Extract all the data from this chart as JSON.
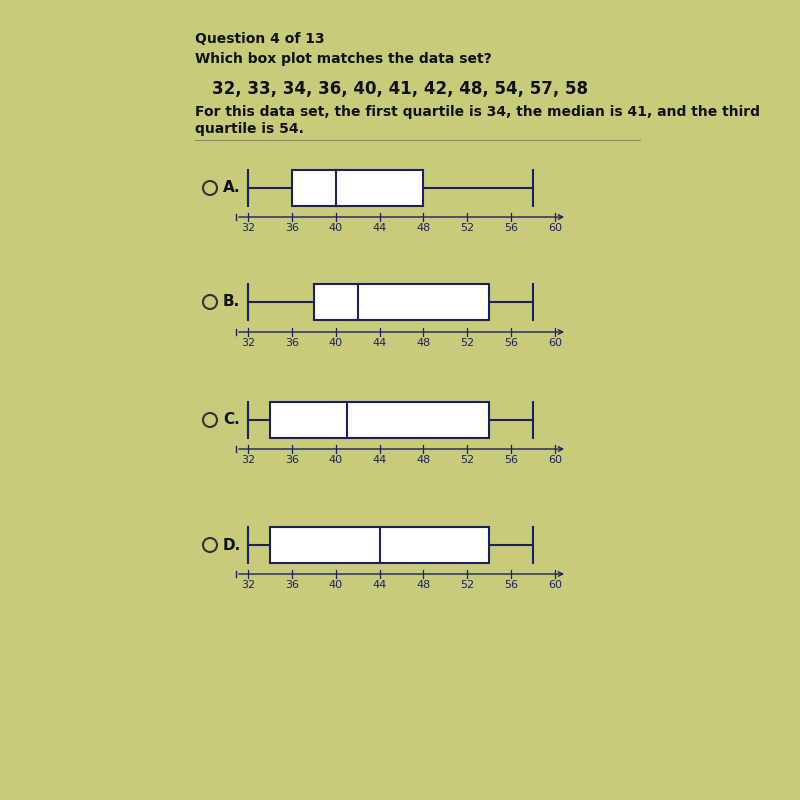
{
  "title": "Question 4 of 13",
  "question": "Which box plot matches the data set?",
  "dataset": "32, 33, 34, 36, 40, 41, 42, 48, 54, 57, 58",
  "description_line1": "For this data set, the first quartile is 34, the median is 41, and the third",
  "description_line2": "quartile is 54.",
  "background_color": "#c8cc7a",
  "box_plots": [
    {
      "label": "A.",
      "min": 32,
      "q1": 36,
      "median": 40,
      "q3": 48,
      "max": 58
    },
    {
      "label": "B.",
      "min": 32,
      "q1": 38,
      "median": 42,
      "q3": 54,
      "max": 58
    },
    {
      "label": "C.",
      "min": 32,
      "q1": 34,
      "median": 41,
      "q3": 54,
      "max": 58
    },
    {
      "label": "D.",
      "min": 32,
      "q1": 34,
      "median": 44,
      "q3": 54,
      "max": 58
    }
  ],
  "axis_data_min": 32,
  "axis_data_max": 60,
  "axis_ticks": [
    32,
    36,
    40,
    44,
    48,
    52,
    56,
    60
  ],
  "box_color": "white",
  "box_edge_color": "#1a2060",
  "axis_color": "#1a2060",
  "text_color": "#111111",
  "label_color": "#111111",
  "circle_color": "#333333",
  "title_fontsize": 10,
  "question_fontsize": 10,
  "dataset_fontsize": 12,
  "desc_fontsize": 10,
  "label_fontsize": 11,
  "tick_fontsize": 8
}
